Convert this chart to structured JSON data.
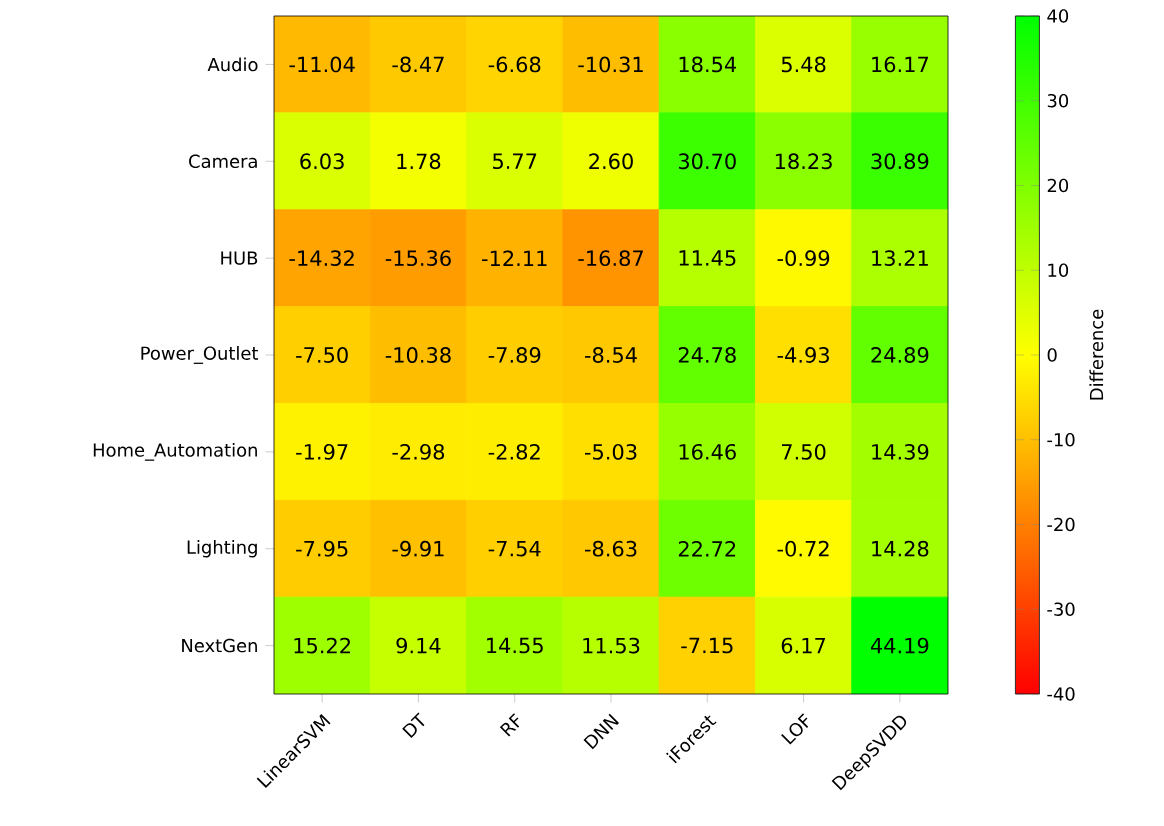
{
  "chart_data": {
    "type": "heatmap",
    "clabel": "Difference",
    "categories": [
      "LinearSVM",
      "DT",
      "RF",
      "DNN",
      "iForest",
      "LOF",
      "DeepSVDD"
    ],
    "y_categories": [
      "Audio",
      "Camera",
      "HUB",
      "Power_Outlet",
      "Home_Automation",
      "Lighting",
      "NextGen"
    ],
    "cells": [
      [
        -11.04,
        -8.47,
        -6.68,
        -10.31,
        18.54,
        5.48,
        16.17
      ],
      [
        6.03,
        1.78,
        5.77,
        2.6,
        30.7,
        18.23,
        30.89
      ],
      [
        -14.32,
        -15.36,
        -12.11,
        -16.87,
        11.45,
        -0.99,
        13.21
      ],
      [
        -7.5,
        -10.38,
        -7.89,
        -8.54,
        24.78,
        -4.93,
        24.89
      ],
      [
        -1.97,
        -2.98,
        -2.82,
        -5.03,
        16.46,
        7.5,
        14.39
      ],
      [
        -7.95,
        -9.91,
        -7.54,
        -8.63,
        22.72,
        -0.72,
        14.28
      ],
      [
        15.22,
        9.14,
        14.55,
        11.53,
        -7.15,
        6.17,
        44.19
      ]
    ],
    "colors": [
      "#ff0000",
      "#ffff00",
      "#00ff00"
    ],
    "clim": [
      -40,
      40
    ],
    "cticks": [
      -40,
      -30,
      -20,
      -10,
      0,
      10,
      20,
      30,
      40
    ],
    "cell_labels": [
      [
        "-11.04",
        "-8.47",
        "-6.68",
        "-10.31",
        "18.54",
        "5.48",
        "16.17"
      ],
      [
        "6.03",
        "1.78",
        "5.77",
        "2.60",
        "30.70",
        "18.23",
        "30.89"
      ],
      [
        "-14.32",
        "-15.36",
        "-12.11",
        "-16.87",
        "11.45",
        "-0.99",
        "13.21"
      ],
      [
        "-7.50",
        "-10.38",
        "-7.89",
        "-8.54",
        "24.78",
        "-4.93",
        "24.89"
      ],
      [
        "-1.97",
        "-2.98",
        "-2.82",
        "-5.03",
        "16.46",
        "7.50",
        "14.39"
      ],
      [
        "-7.95",
        "-9.91",
        "-7.54",
        "-8.63",
        "22.72",
        "-0.72",
        "14.28"
      ],
      [
        "15.22",
        "9.14",
        "14.55",
        "11.53",
        "-7.15",
        "6.17",
        "44.19"
      ]
    ]
  }
}
